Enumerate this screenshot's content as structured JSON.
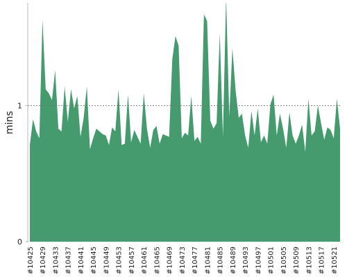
{
  "chart_data": {
    "type": "area",
    "y_label": "mins",
    "color": "#459b6e",
    "categories": [
      "#10425",
      null,
      null,
      null,
      "#10429",
      null,
      null,
      null,
      "#10433",
      null,
      null,
      null,
      "#10437",
      null,
      null,
      null,
      "#10441",
      null,
      null,
      null,
      "#10445",
      null,
      null,
      null,
      "#10449",
      null,
      null,
      null,
      "#10453",
      null,
      null,
      null,
      "#10457",
      null,
      null,
      null,
      "#10461",
      null,
      null,
      null,
      "#10465",
      null,
      null,
      null,
      "#10469",
      null,
      null,
      null,
      "#10473",
      null,
      null,
      null,
      "#10477",
      null,
      null,
      null,
      "#10481",
      null,
      null,
      null,
      "#10485",
      null,
      null,
      null,
      "#10489",
      null,
      null,
      null,
      "#10493",
      null,
      null,
      null,
      "#10497",
      null,
      null,
      null,
      "#10501",
      null,
      null,
      null,
      "#10505",
      null,
      null,
      null,
      "#10509",
      null,
      null,
      null,
      "#10513",
      null,
      null,
      null,
      "#10517",
      null,
      null,
      null,
      "#10521",
      null,
      null
    ],
    "values": [
      0.71,
      0.9,
      0.81,
      0.76,
      1.63,
      1.12,
      1.09,
      1.04,
      1.26,
      0.83,
      0.81,
      1.14,
      0.88,
      1.12,
      0.98,
      1.07,
      0.77,
      0.91,
      1.14,
      0.68,
      0.76,
      0.83,
      0.81,
      0.79,
      0.78,
      0.71,
      0.84,
      0.81,
      1.12,
      0.71,
      0.72,
      1.08,
      0.73,
      0.82,
      0.77,
      0.72,
      1.09,
      0.83,
      0.69,
      0.82,
      0.85,
      0.72,
      0.79,
      0.78,
      0.77,
      1.34,
      1.51,
      1.44,
      0.76,
      0.8,
      0.78,
      1.07,
      0.74,
      0.77,
      0.72,
      1.67,
      1.62,
      0.89,
      0.83,
      0.87,
      1.53,
      0.77,
      1.8,
      0.92,
      1.42,
      1.11,
      0.91,
      0.94,
      0.78,
      0.69,
      0.96,
      0.78,
      0.98,
      0.73,
      0.78,
      0.72,
      1.01,
      1.08,
      0.78,
      0.94,
      0.83,
      0.69,
      0.95,
      0.78,
      0.72,
      0.78,
      0.86,
      0.66,
      1.05,
      0.78,
      0.81,
      1.0,
      0.87,
      0.75,
      0.84,
      0.82,
      0.76,
      1.05,
      0.83
    ],
    "ylim": [
      0,
      1.75
    ],
    "yticks": [
      0,
      1
    ],
    "grid_ticks": [
      1
    ]
  }
}
